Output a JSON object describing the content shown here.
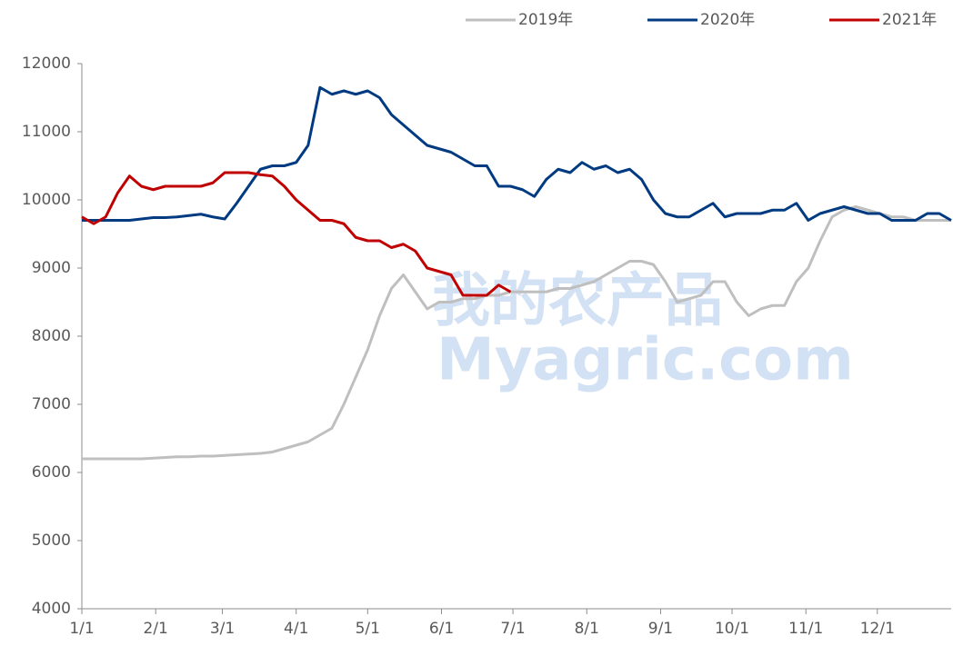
{
  "chart_data": {
    "type": "line",
    "watermark": [
      "我的农产品",
      "Myagric.com"
    ],
    "x": [
      0,
      5,
      10,
      15,
      20,
      25,
      30,
      35,
      40,
      45,
      50,
      55,
      60,
      65,
      70,
      75,
      80,
      85,
      90,
      95,
      100,
      105,
      110,
      115,
      120,
      125,
      130,
      135,
      140,
      145,
      150,
      155,
      160,
      165,
      170,
      175,
      180,
      185,
      190,
      195,
      200,
      205,
      210,
      215,
      220,
      225,
      230,
      235,
      240,
      245,
      250,
      255,
      260,
      265,
      270,
      275,
      280,
      285,
      290,
      295,
      300,
      305,
      310,
      315,
      320,
      325,
      330,
      335,
      340,
      345,
      350,
      355,
      360,
      365
    ],
    "series": [
      {
        "name": "2019年",
        "color": "#bfbfbf",
        "values": [
          6200,
          6200,
          6200,
          6200,
          6200,
          6200,
          6210,
          6220,
          6230,
          6230,
          6240,
          6240,
          6250,
          6260,
          6270,
          6280,
          6300,
          6350,
          6400,
          6450,
          6550,
          6650,
          7000,
          7400,
          7800,
          8300,
          8700,
          8900,
          8650,
          8400,
          8500,
          8500,
          8550,
          8550,
          8600,
          8600,
          8650,
          8650,
          8650,
          8650,
          8700,
          8700,
          8750,
          8800,
          8900,
          9000,
          9100,
          9100,
          9050,
          8800,
          8500,
          8550,
          8600,
          8800,
          8800,
          8500,
          8300,
          8400,
          8450,
          8450,
          8800,
          9000,
          9400,
          9750,
          9850,
          9900,
          9850,
          9800,
          9750,
          9750,
          9700,
          9700,
          9700,
          9700
        ]
      },
      {
        "name": "2020年",
        "color": "#003a80",
        "values": [
          9700,
          9700,
          9700,
          9700,
          9700,
          9720,
          9740,
          9740,
          9750,
          9770,
          9790,
          9750,
          9720,
          9950,
          10200,
          10450,
          10500,
          10500,
          10550,
          10800,
          11650,
          11550,
          11600,
          11550,
          11600,
          11500,
          11250,
          11100,
          10950,
          10800,
          10750,
          10700,
          10600,
          10500,
          10500,
          10200,
          10200,
          10150,
          10050,
          10300,
          10450,
          10400,
          10550,
          10450,
          10500,
          10400,
          10450,
          10300,
          10000,
          9800,
          9750,
          9750,
          9850,
          9950,
          9750,
          9800,
          9800,
          9800,
          9850,
          9850,
          9950,
          9700,
          9800,
          9850,
          9900,
          9850,
          9800,
          9800,
          9700,
          9700,
          9700,
          9800,
          9800,
          9700
        ]
      },
      {
        "name": "2021年",
        "color": "#c00000",
        "values": [
          9750,
          9650,
          9750,
          10100,
          10350,
          10200,
          10150,
          10200,
          10200,
          10200,
          10200,
          10250,
          10400,
          10400,
          10400,
          10370,
          10350,
          10200,
          10000,
          9850,
          9700,
          9700,
          9650,
          9450,
          9400,
          9400,
          9300,
          9350,
          9250,
          9000,
          8950,
          8900,
          8600,
          8600,
          8600,
          8750,
          8650,
          null,
          null,
          null,
          null,
          null,
          null,
          null,
          null,
          null,
          null,
          null,
          null,
          null,
          null,
          null,
          null,
          null,
          null,
          null,
          null,
          null,
          null,
          null,
          null,
          null,
          null,
          null,
          null,
          null,
          null,
          null,
          null,
          null,
          null,
          null,
          null,
          null
        ]
      }
    ],
    "xlim": [
      0,
      365
    ],
    "xticks": [
      {
        "value": 0,
        "label": "1/1"
      },
      {
        "value": 31,
        "label": "2/1"
      },
      {
        "value": 59,
        "label": "3/1"
      },
      {
        "value": 90,
        "label": "4/1"
      },
      {
        "value": 120,
        "label": "5/1"
      },
      {
        "value": 151,
        "label": "6/1"
      },
      {
        "value": 181,
        "label": "7/1"
      },
      {
        "value": 212,
        "label": "8/1"
      },
      {
        "value": 243,
        "label": "9/1"
      },
      {
        "value": 273,
        "label": "10/1"
      },
      {
        "value": 304,
        "label": "11/1"
      },
      {
        "value": 334,
        "label": "12/1"
      }
    ],
    "ylim": [
      4000,
      12000
    ],
    "yticks": [
      4000,
      5000,
      6000,
      7000,
      8000,
      9000,
      10000,
      11000,
      12000
    ],
    "grid": false,
    "legend": "top-right"
  }
}
